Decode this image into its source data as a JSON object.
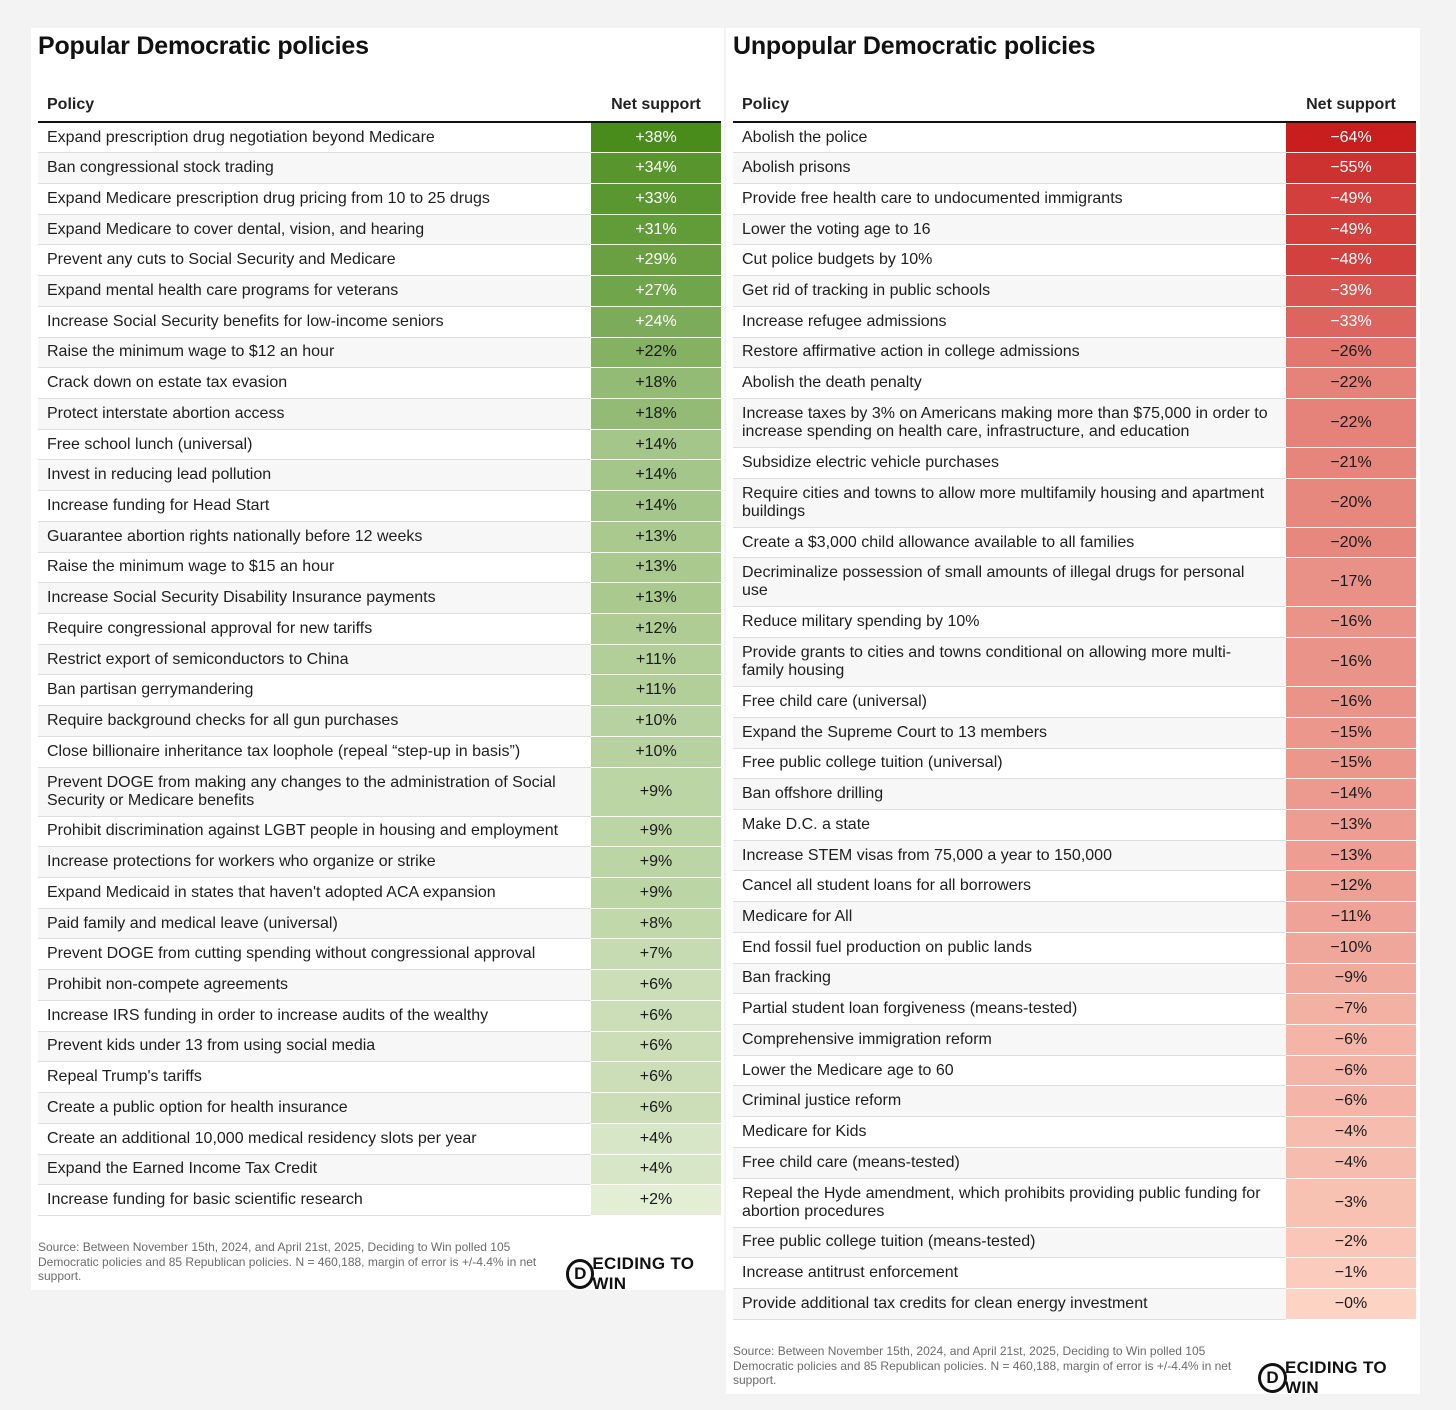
{
  "left": {
    "title": "Popular Democratic policies",
    "headers": {
      "policy": "Policy",
      "net": "Net support"
    },
    "color": "#4a8c1c",
    "rows": [
      {
        "policy": "Expand prescription drug negotiation beyond Medicare",
        "net": "+38%",
        "value": 38
      },
      {
        "policy": "Ban congressional stock trading",
        "net": "+34%",
        "value": 34
      },
      {
        "policy": "Expand Medicare prescription drug pricing from 10 to 25 drugs",
        "net": "+33%",
        "value": 33
      },
      {
        "policy": "Expand Medicare to cover dental, vision, and hearing",
        "net": "+31%",
        "value": 31
      },
      {
        "policy": "Prevent any cuts to Social Security and Medicare",
        "net": "+29%",
        "value": 29
      },
      {
        "policy": "Expand mental health care programs for veterans",
        "net": "+27%",
        "value": 27
      },
      {
        "policy": "Increase Social Security benefits for low-income seniors",
        "net": "+24%",
        "value": 24
      },
      {
        "policy": "Raise the minimum wage to $12 an hour",
        "net": "+22%",
        "value": 22
      },
      {
        "policy": "Crack down on estate tax evasion",
        "net": "+18%",
        "value": 18
      },
      {
        "policy": "Protect interstate abortion access",
        "net": "+18%",
        "value": 18
      },
      {
        "policy": "Free school lunch (universal)",
        "net": "+14%",
        "value": 14
      },
      {
        "policy": "Invest in reducing lead pollution",
        "net": "+14%",
        "value": 14
      },
      {
        "policy": "Increase funding for Head Start",
        "net": "+14%",
        "value": 14
      },
      {
        "policy": "Guarantee abortion rights nationally before 12 weeks",
        "net": "+13%",
        "value": 13
      },
      {
        "policy": "Raise the minimum wage to $15 an hour",
        "net": "+13%",
        "value": 13
      },
      {
        "policy": "Increase Social Security Disability Insurance payments",
        "net": "+13%",
        "value": 13
      },
      {
        "policy": "Require congressional approval for new tariffs",
        "net": "+12%",
        "value": 12
      },
      {
        "policy": "Restrict export of semiconductors to China",
        "net": "+11%",
        "value": 11
      },
      {
        "policy": "Ban partisan gerrymandering",
        "net": "+11%",
        "value": 11
      },
      {
        "policy": "Require background checks for all gun purchases",
        "net": "+10%",
        "value": 10
      },
      {
        "policy": "Close billionaire inheritance tax loophole (repeal “step-up in basis”)",
        "net": "+10%",
        "value": 10
      },
      {
        "policy": "Prevent DOGE from making any changes to the administration of Social Security or Medicare benefits",
        "net": "+9%",
        "value": 9,
        "tall": true
      },
      {
        "policy": "Prohibit discrimination against LGBT people in housing and employment",
        "net": "+9%",
        "value": 9
      },
      {
        "policy": "Increase protections for workers who organize or strike",
        "net": "+9%",
        "value": 9
      },
      {
        "policy": "Expand Medicaid in states that haven't adopted ACA expansion",
        "net": "+9%",
        "value": 9
      },
      {
        "policy": "Paid family and medical leave (universal)",
        "net": "+8%",
        "value": 8
      },
      {
        "policy": "Prevent DOGE from cutting spending without congressional approval",
        "net": "+7%",
        "value": 7
      },
      {
        "policy": "Prohibit non-compete agreements",
        "net": "+6%",
        "value": 6
      },
      {
        "policy": "Increase IRS funding in order to increase audits of the wealthy",
        "net": "+6%",
        "value": 6
      },
      {
        "policy": "Prevent kids under 13 from using social media",
        "net": "+6%",
        "value": 6
      },
      {
        "policy": "Repeal Trump's tariffs",
        "net": "+6%",
        "value": 6
      },
      {
        "policy": "Create a public option for health insurance",
        "net": "+6%",
        "value": 6
      },
      {
        "policy": "Create an additional 10,000 medical residency slots per year",
        "net": "+4%",
        "value": 4
      },
      {
        "policy": "Expand the Earned Income Tax Credit",
        "net": "+4%",
        "value": 4
      },
      {
        "policy": "Increase funding for basic scientific research",
        "net": "+2%",
        "value": 2
      }
    ],
    "source": "Source: Between November 15th, 2024, and April 21st, 2025, Deciding to Win polled 105 Democratic policies and 85 Republican policies. N = 460,188, margin of error is +/-4.4% in net support.",
    "logo": {
      "mark": "D",
      "text": "ECIDING TO WIN"
    }
  },
  "right": {
    "title": "Unpopular Democratic policies",
    "headers": {
      "policy": "Policy",
      "net": "Net support"
    },
    "color": "#c81e1e",
    "rows": [
      {
        "policy": "Abolish the police",
        "net": "−64%",
        "value": -64
      },
      {
        "policy": "Abolish prisons",
        "net": "−55%",
        "value": -55
      },
      {
        "policy": "Provide free health care to undocumented immigrants",
        "net": "−49%",
        "value": -49
      },
      {
        "policy": "Lower the voting age to 16",
        "net": "−49%",
        "value": -49
      },
      {
        "policy": "Cut police budgets by 10%",
        "net": "−48%",
        "value": -48
      },
      {
        "policy": "Get rid of tracking in public schools",
        "net": "−39%",
        "value": -39
      },
      {
        "policy": "Increase refugee admissions",
        "net": "−33%",
        "value": -33
      },
      {
        "policy": "Restore affirmative action in college admissions",
        "net": "−26%",
        "value": -26
      },
      {
        "policy": "Abolish the death penalty",
        "net": "−22%",
        "value": -22
      },
      {
        "policy": "Increase taxes by 3% on Americans making more than $75,000 in order to increase spending on health care, infrastructure, and education",
        "net": "−22%",
        "value": -22,
        "tall": true
      },
      {
        "policy": "Subsidize electric vehicle purchases",
        "net": "−21%",
        "value": -21
      },
      {
        "policy": "Require cities and towns to allow more multifamily housing and apartment buildings",
        "net": "−20%",
        "value": -20,
        "tall": true
      },
      {
        "policy": "Create a $3,000 child allowance available to all families",
        "net": "−20%",
        "value": -20
      },
      {
        "policy": "Decriminalize possession of small amounts of illegal drugs for personal use",
        "net": "−17%",
        "value": -17,
        "tall": true
      },
      {
        "policy": "Reduce military spending by 10%",
        "net": "−16%",
        "value": -16
      },
      {
        "policy": "Provide grants to cities and towns conditional on allowing more multi-family housing",
        "net": "−16%",
        "value": -16,
        "tall": true
      },
      {
        "policy": "Free child care (universal)",
        "net": "−16%",
        "value": -16
      },
      {
        "policy": "Expand the Supreme Court to 13 members",
        "net": "−15%",
        "value": -15
      },
      {
        "policy": "Free public college tuition (universal)",
        "net": "−15%",
        "value": -15
      },
      {
        "policy": "Ban offshore drilling",
        "net": "−14%",
        "value": -14
      },
      {
        "policy": "Make D.C. a state",
        "net": "−13%",
        "value": -13
      },
      {
        "policy": "Increase STEM visas from 75,000 a year to 150,000",
        "net": "−13%",
        "value": -13
      },
      {
        "policy": "Cancel all student loans for all borrowers",
        "net": "−12%",
        "value": -12
      },
      {
        "policy": "Medicare for All",
        "net": "−11%",
        "value": -11
      },
      {
        "policy": "End fossil fuel production on public lands",
        "net": "−10%",
        "value": -10
      },
      {
        "policy": "Ban fracking",
        "net": "−9%",
        "value": -9
      },
      {
        "policy": "Partial student loan forgiveness (means-tested)",
        "net": "−7%",
        "value": -7
      },
      {
        "policy": "Comprehensive immigration reform",
        "net": "−6%",
        "value": -6
      },
      {
        "policy": "Lower the Medicare age to 60",
        "net": "−6%",
        "value": -6
      },
      {
        "policy": "Criminal justice reform",
        "net": "−6%",
        "value": -6
      },
      {
        "policy": "Medicare for Kids",
        "net": "−4%",
        "value": -4
      },
      {
        "policy": "Free child care (means-tested)",
        "net": "−4%",
        "value": -4
      },
      {
        "policy": "Repeal the Hyde amendment, which prohibits providing public funding for abortion procedures",
        "net": "−3%",
        "value": -3,
        "tall": true
      },
      {
        "policy": "Free public college tuition (means-tested)",
        "net": "−2%",
        "value": -2
      },
      {
        "policy": "Increase antitrust enforcement",
        "net": "−1%",
        "value": -1
      },
      {
        "policy": "Provide additional tax credits for clean energy investment",
        "net": "−0%",
        "value": 0
      }
    ],
    "source": "Source: Between November 15th, 2024, and April 21st, 2025, Deciding to Win polled 105 Democratic policies and 85 Republican policies. N = 460,188, margin of error is +/-4.4% in net support.",
    "logo": {
      "mark": "D",
      "text": "ECIDING TO WIN"
    }
  }
}
